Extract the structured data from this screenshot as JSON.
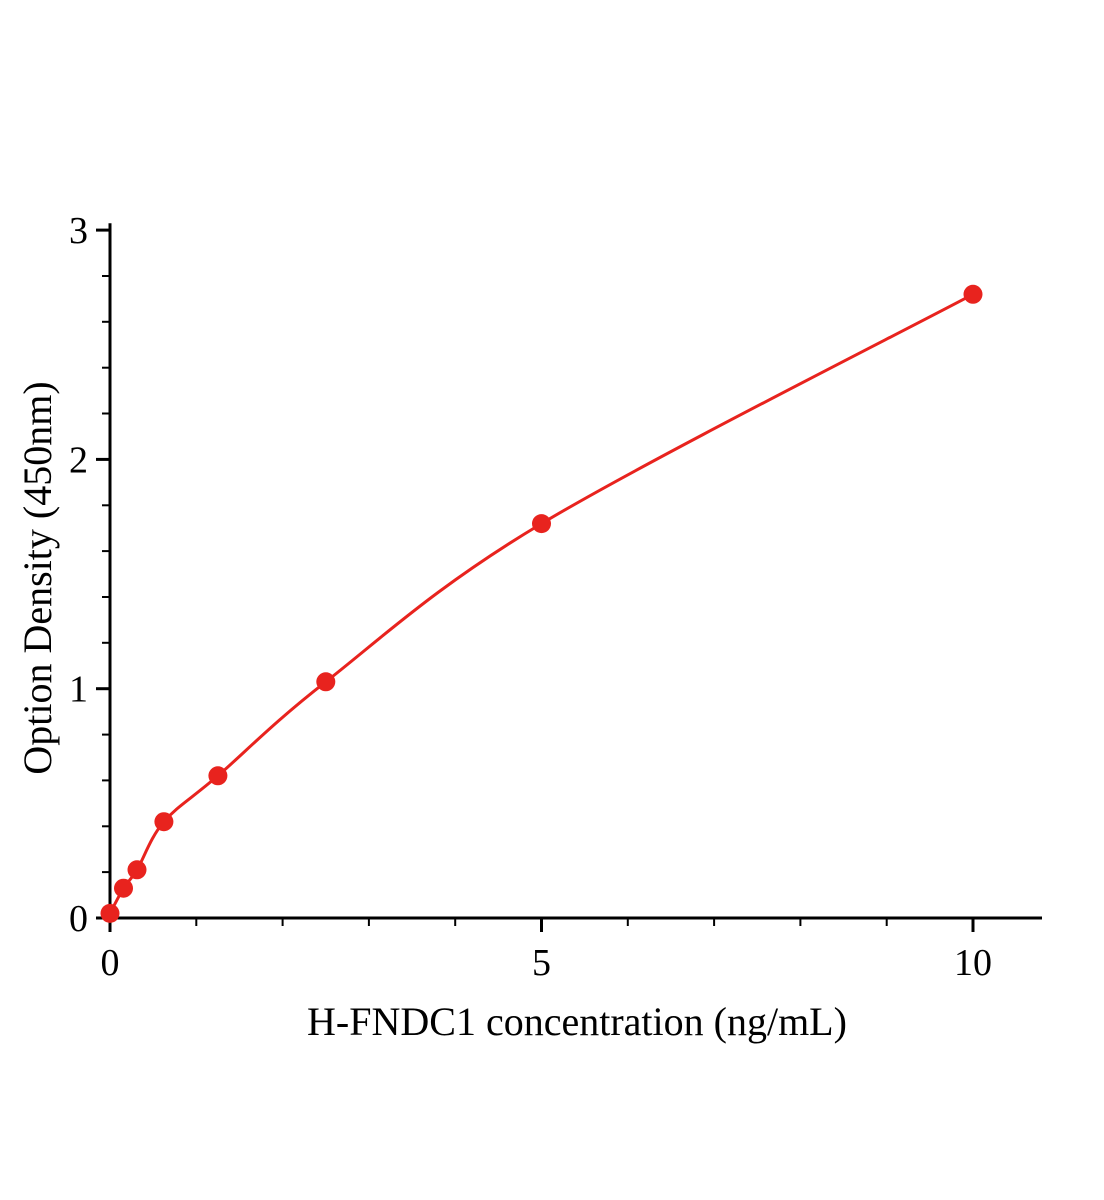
{
  "chart_data": {
    "type": "scatter",
    "title": "",
    "xlabel": "H-FNDC1 concentration (ng/mL)",
    "ylabel": "Option Density (450nm)",
    "x": [
      0,
      0.156,
      0.3125,
      0.625,
      1.25,
      2.5,
      5,
      10
    ],
    "y": [
      0.02,
      0.13,
      0.21,
      0.42,
      0.62,
      1.03,
      1.72,
      2.72
    ],
    "xlim": [
      0,
      10.8
    ],
    "ylim": [
      0,
      3.03
    ],
    "x_ticks_major": [
      0,
      5,
      10
    ],
    "y_ticks_major": [
      0,
      1,
      2,
      3
    ],
    "x_minor_step": 1,
    "y_minor_step": 0.2,
    "line_color": "#e8231e",
    "axis_color": "#000000",
    "marker": "circle",
    "marker_radius": 9.5,
    "legend": "none",
    "grid": false
  }
}
